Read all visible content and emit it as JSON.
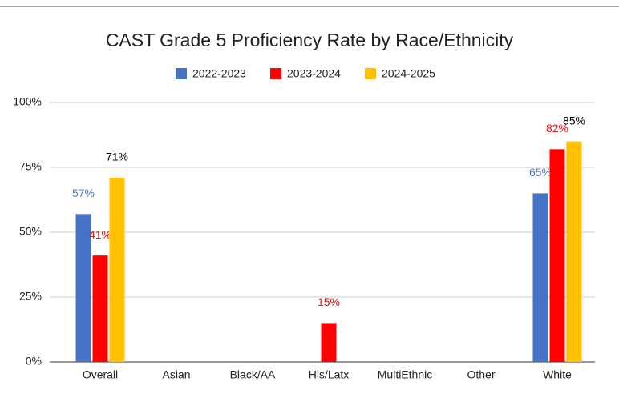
{
  "chart_data": {
    "type": "bar",
    "title": "CAST Grade 5 Proficiency Rate by Race/Ethnicity",
    "categories": [
      "Overall",
      "Asian",
      "Black/AA",
      "His/Latx",
      "MultiEthnic",
      "Other",
      "White"
    ],
    "series": [
      {
        "name": "2022-2023",
        "color": "#4472c4",
        "label_color": "#4a78cc",
        "values": [
          57,
          null,
          null,
          null,
          null,
          null,
          65
        ],
        "value_labels": [
          "57%",
          null,
          null,
          null,
          null,
          null,
          "65%"
        ]
      },
      {
        "name": "2023-2024",
        "color": "#ff0000",
        "label_color": "#ee1111",
        "values": [
          41,
          null,
          null,
          15,
          null,
          null,
          82
        ],
        "value_labels": [
          "41%",
          null,
          null,
          "15%",
          null,
          null,
          "82%"
        ]
      },
      {
        "name": "2024-2025",
        "color": "#ffc000",
        "label_color": "#000000",
        "values": [
          71,
          null,
          null,
          null,
          null,
          null,
          85
        ],
        "value_labels": [
          "71%",
          null,
          null,
          null,
          null,
          null,
          "85%"
        ]
      }
    ],
    "ylim": [
      0,
      100
    ],
    "yticks": [
      {
        "value": 0,
        "label": "0%"
      },
      {
        "value": 25,
        "label": "25%"
      },
      {
        "value": 50,
        "label": "50%"
      },
      {
        "value": 75,
        "label": "75%"
      },
      {
        "value": 100,
        "label": "100%"
      }
    ],
    "grid": true,
    "legend": "top"
  }
}
